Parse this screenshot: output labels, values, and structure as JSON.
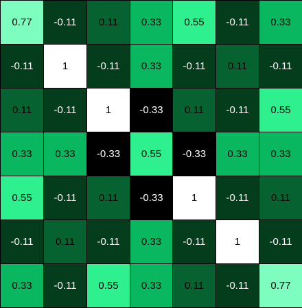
{
  "chart_data": {
    "type": "heatmap",
    "rows": 7,
    "cols": 7,
    "values": [
      [
        "0.77",
        "-0.11",
        "0.11",
        "0.33",
        "0.55",
        "-0.11",
        "0.33"
      ],
      [
        "-0.11",
        "1",
        "-0.11",
        "0.33",
        "-0.11",
        "0.11",
        "-0.11"
      ],
      [
        "0.11",
        "-0.11",
        "1",
        "-0.33",
        "0.11",
        "-0.11",
        "0.55"
      ],
      [
        "0.33",
        "0.33",
        "-0.33",
        "0.55",
        "-0.33",
        "0.33",
        "0.33"
      ],
      [
        "0.55",
        "-0.11",
        "0.11",
        "-0.33",
        "1",
        "-0.11",
        "0.11"
      ],
      [
        "-0.11",
        "0.11",
        "-0.11",
        "0.33",
        "-0.11",
        "1",
        "-0.11"
      ],
      [
        "0.33",
        "-0.11",
        "0.55",
        "0.33",
        "0.11",
        "-0.11",
        "0.77"
      ]
    ],
    "colors": {
      "1": "#ffffff",
      "0.77": "#7dfdc0",
      "0.55": "#2ef08e",
      "0.33": "#08b75f",
      "0.11": "#066230",
      "-0.11": "#033d1b",
      "-0.33": "#000000"
    },
    "text_colors": {
      "1": "#000000",
      "0.77": "#000000",
      "0.55": "#000000",
      "0.33": "#000000",
      "0.11": "#000000",
      "-0.11": "#ffffff",
      "-0.33": "#ffffff"
    }
  }
}
